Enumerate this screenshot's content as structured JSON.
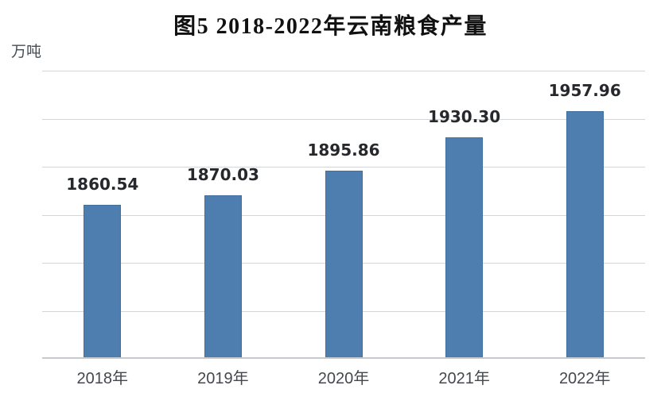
{
  "page": {
    "title": "图5 2018-2022年云南粮食产量",
    "y_axis_unit": "万吨"
  },
  "chart_data": {
    "type": "bar",
    "title": "图5 2018-2022年云南粮食产量",
    "xlabel": "",
    "ylabel": "万吨",
    "categories": [
      "2018年",
      "2019年",
      "2020年",
      "2021年",
      "2022年"
    ],
    "values": [
      1860.54,
      1870.03,
      1895.86,
      1930.3,
      1957.96
    ],
    "value_labels": [
      "1860.54",
      "1870.03",
      "1895.86",
      "1930.30",
      "1957.96"
    ],
    "ylim": [
      1700,
      2000
    ],
    "y_gridline_step": 50,
    "grid": true,
    "y_tick_labels_shown": false,
    "legend_position": "none",
    "colors": {
      "background": "#ffffff",
      "bar": "#4e7eb0",
      "bar_border": "#41709f",
      "gridline": "#d2d6d9",
      "axis_line": "#c6cace",
      "title": "#111111",
      "value_label": "#26282c",
      "tick_label": "#44484e",
      "unit_label": "#454e57"
    }
  }
}
